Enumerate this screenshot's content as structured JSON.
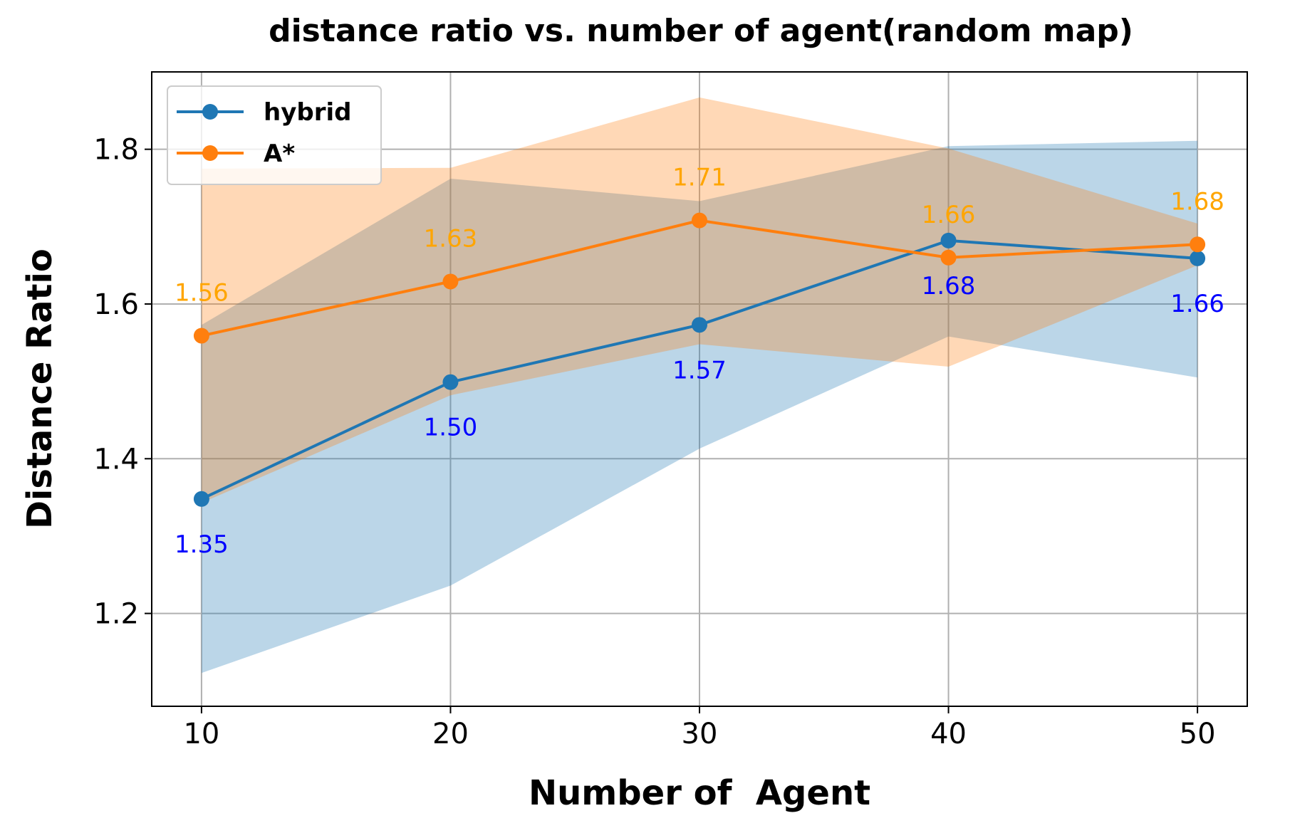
{
  "chart_data": {
    "type": "line",
    "title": "distance ratio vs. number of agent(random map)",
    "xlabel": "Number of  Agent",
    "ylabel": "Distance Ratio",
    "x": [
      10,
      20,
      30,
      40,
      50
    ],
    "xlim": [
      8,
      52
    ],
    "ylim": [
      1.08,
      1.9
    ],
    "xticks": [
      10,
      20,
      30,
      40,
      50
    ],
    "yticks": [
      1.2,
      1.4,
      1.6,
      1.8
    ],
    "xtick_labels": [
      "10",
      "20",
      "30",
      "40",
      "50"
    ],
    "ytick_labels": [
      "1.2",
      "1.4",
      "1.6",
      "1.8"
    ],
    "grid": true,
    "legend_position": "upper-left",
    "series": [
      {
        "name": "hybrid",
        "color": "#1f77b4",
        "band_color": "#1f77b4",
        "label_color": "#0000ff",
        "label_position": "below",
        "values": [
          1.348,
          1.499,
          1.573,
          1.682,
          1.659
        ],
        "labels": [
          "1.35",
          "1.50",
          "1.57",
          "1.68",
          "1.66"
        ],
        "band_lower": [
          1.123,
          1.236,
          1.413,
          1.558,
          1.505
        ],
        "band_upper": [
          1.573,
          1.762,
          1.733,
          1.804,
          1.811
        ]
      },
      {
        "name": "A*",
        "color": "#ff7f0e",
        "band_color": "#ff7f0e",
        "label_color": "#ffa500",
        "label_position": "above",
        "values": [
          1.559,
          1.629,
          1.708,
          1.66,
          1.677
        ],
        "labels": [
          "1.56",
          "1.63",
          "1.71",
          "1.66",
          "1.68"
        ],
        "band_lower": [
          1.343,
          1.482,
          1.548,
          1.519,
          1.65
        ],
        "band_upper": [
          1.775,
          1.776,
          1.867,
          1.801,
          1.704
        ]
      }
    ]
  }
}
